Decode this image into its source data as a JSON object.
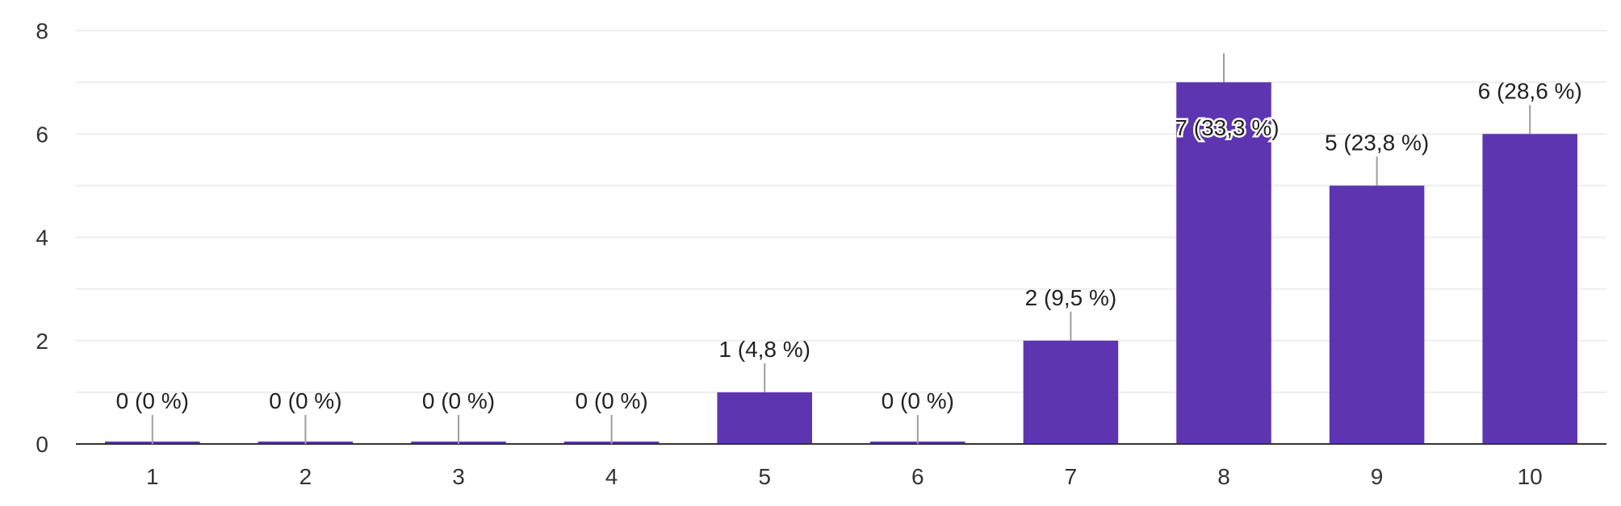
{
  "chart_data": {
    "type": "bar",
    "categories": [
      "1",
      "2",
      "3",
      "4",
      "5",
      "6",
      "7",
      "8",
      "9",
      "10"
    ],
    "values": [
      0,
      0,
      0,
      0,
      1,
      0,
      2,
      7,
      5,
      6
    ],
    "data_labels": [
      "0 (0 %)",
      "0 (0 %)",
      "0 (0 %)",
      "0 (0 %)",
      "1 (4,8 %)",
      "0 (0 %)",
      "2 (9,5 %)",
      "7 (33,3 %)",
      "5 (23,8 %)",
      "6 (28,6 %)"
    ],
    "y_ticks": [
      "0",
      "2",
      "4",
      "6",
      "8"
    ],
    "ylim": [
      0,
      8
    ],
    "grid": true,
    "bar_color": "#5e35b1",
    "gridline_color": "#eeeeee",
    "axis_color": "#333333",
    "connector_color": "#9e9e9e",
    "title": "",
    "xlabel": "",
    "ylabel": ""
  }
}
